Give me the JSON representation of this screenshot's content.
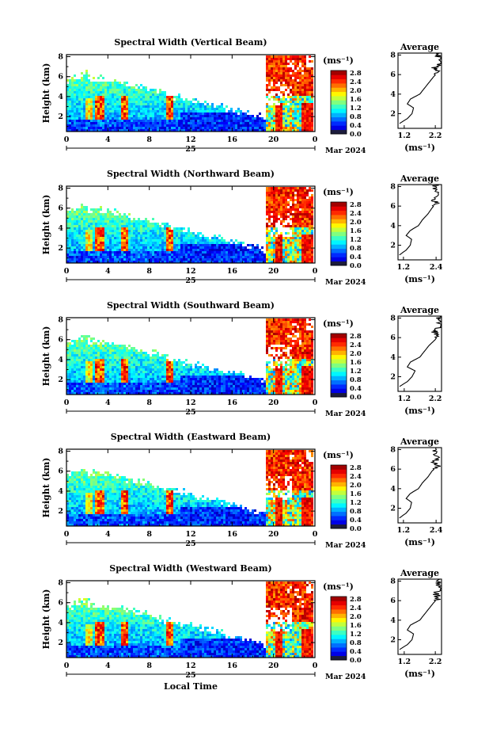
{
  "chart_data": [
    {
      "type": "heatmap",
      "title": "Spectral Width (Vertical Beam)",
      "ylabel": "Height (km)",
      "xticks": [
        "0",
        "4",
        "8",
        "12",
        "16",
        "20",
        "0"
      ],
      "yticks": [
        "2",
        "4",
        "6",
        "8"
      ],
      "xlim": [
        0,
        24
      ],
      "ylim": [
        0.5,
        8.2
      ],
      "day_label": "25",
      "month_label": "Mar 2024",
      "colorbar": {
        "unit": "(ms⁻¹)",
        "ticks": [
          "0.0",
          "0.4",
          "0.8",
          "1.2",
          "1.6",
          "2.0",
          "2.4",
          "2.8"
        ],
        "range": [
          0,
          2.9
        ]
      },
      "average": {
        "title": "Average",
        "xlabel": "(ms⁻¹)",
        "xticks": [
          "1.2",
          "2.2"
        ],
        "xlim": [
          1.0,
          2.4
        ],
        "yticks": [
          "2",
          "4",
          "6",
          "8"
        ],
        "profile": [
          [
            1.05,
            1.0
          ],
          [
            1.3,
            1.5
          ],
          [
            1.45,
            2.0
          ],
          [
            1.5,
            2.6
          ],
          [
            1.3,
            3.0
          ],
          [
            1.4,
            3.5
          ],
          [
            1.7,
            4.0
          ],
          [
            1.85,
            4.6
          ],
          [
            2.0,
            5.2
          ],
          [
            2.15,
            5.8
          ],
          [
            2.3,
            6.3
          ],
          [
            2.2,
            6.7
          ],
          [
            2.4,
            7.2
          ],
          [
            2.3,
            7.8
          ],
          [
            2.35,
            8.2
          ]
        ]
      }
    },
    {
      "type": "heatmap",
      "title": "Spectral Width (Northward Beam)",
      "ylabel": "Height (km)",
      "xticks": [
        "0",
        "4",
        "8",
        "12",
        "16",
        "20",
        "0"
      ],
      "yticks": [
        "2",
        "4",
        "6",
        "8"
      ],
      "xlim": [
        0,
        24
      ],
      "ylim": [
        0.5,
        8.2
      ],
      "day_label": "25",
      "month_label": "Mar 2024",
      "colorbar": {
        "unit": "(ms⁻¹)",
        "ticks": [
          "0.0",
          "0.4",
          "0.8",
          "1.2",
          "1.6",
          "2.0",
          "2.4",
          "2.8"
        ],
        "range": [
          0,
          2.9
        ]
      },
      "average": {
        "title": "Average",
        "xlabel": "(ms⁻¹)",
        "xticks": [
          "1.2",
          "2.4"
        ],
        "xlim": [
          1.0,
          2.6
        ],
        "yticks": [
          "2",
          "4",
          "6",
          "8"
        ],
        "profile": [
          [
            1.05,
            1.0
          ],
          [
            1.3,
            1.5
          ],
          [
            1.45,
            2.0
          ],
          [
            1.5,
            2.6
          ],
          [
            1.3,
            3.0
          ],
          [
            1.45,
            3.5
          ],
          [
            1.75,
            4.0
          ],
          [
            1.9,
            4.6
          ],
          [
            2.1,
            5.2
          ],
          [
            2.25,
            5.8
          ],
          [
            2.4,
            6.3
          ],
          [
            2.3,
            6.7
          ],
          [
            2.5,
            7.2
          ],
          [
            2.35,
            7.8
          ],
          [
            2.4,
            8.2
          ]
        ]
      }
    },
    {
      "type": "heatmap",
      "title": "Spectral Width (Southward Beam)",
      "ylabel": "Height (km)",
      "xticks": [
        "0",
        "4",
        "8",
        "12",
        "16",
        "20",
        "0"
      ],
      "yticks": [
        "2",
        "4",
        "6",
        "8"
      ],
      "xlim": [
        0,
        24
      ],
      "ylim": [
        0.5,
        8.2
      ],
      "day_label": "25",
      "month_label": "Mar 2024",
      "colorbar": {
        "unit": "(ms⁻¹)",
        "ticks": [
          "0.0",
          "0.4",
          "0.8",
          "1.2",
          "1.6",
          "2.0",
          "2.4",
          "2.8"
        ],
        "range": [
          0,
          2.9
        ]
      },
      "average": {
        "title": "Average",
        "xlabel": "(ms⁻¹)",
        "xticks": [
          "1.2",
          "2.2"
        ],
        "xlim": [
          1.0,
          2.4
        ],
        "yticks": [
          "2",
          "4",
          "6",
          "8"
        ],
        "profile": [
          [
            1.05,
            1.0
          ],
          [
            1.3,
            1.5
          ],
          [
            1.45,
            2.0
          ],
          [
            1.55,
            2.6
          ],
          [
            1.3,
            3.0
          ],
          [
            1.4,
            3.5
          ],
          [
            1.7,
            4.0
          ],
          [
            1.85,
            4.6
          ],
          [
            2.0,
            5.2
          ],
          [
            2.2,
            5.8
          ],
          [
            2.3,
            6.3
          ],
          [
            2.15,
            6.7
          ],
          [
            2.4,
            7.2
          ],
          [
            2.3,
            7.8
          ],
          [
            2.35,
            8.2
          ]
        ]
      }
    },
    {
      "type": "heatmap",
      "title": "Spectral Width (Eastward Beam)",
      "ylabel": "Height (km)",
      "xticks": [
        "0",
        "4",
        "8",
        "12",
        "16",
        "20",
        "0"
      ],
      "yticks": [
        "2",
        "4",
        "6",
        "8"
      ],
      "xlim": [
        0,
        24
      ],
      "ylim": [
        0.5,
        8.2
      ],
      "day_label": "25",
      "month_label": "Mar 2024",
      "colorbar": {
        "unit": "(ms⁻¹)",
        "ticks": [
          "0.0",
          "0.4",
          "0.8",
          "1.2",
          "1.6",
          "2.0",
          "2.4",
          "2.8"
        ],
        "range": [
          0,
          2.9
        ]
      },
      "average": {
        "title": "Average",
        "xlabel": "(ms⁻¹)",
        "xticks": [
          "1.2",
          "2.4"
        ],
        "xlim": [
          1.0,
          2.6
        ],
        "yticks": [
          "2",
          "4",
          "6",
          "8"
        ],
        "profile": [
          [
            1.05,
            1.0
          ],
          [
            1.3,
            1.5
          ],
          [
            1.45,
            2.0
          ],
          [
            1.5,
            2.6
          ],
          [
            1.3,
            3.0
          ],
          [
            1.45,
            3.5
          ],
          [
            1.75,
            4.0
          ],
          [
            1.9,
            4.6
          ],
          [
            2.1,
            5.2
          ],
          [
            2.25,
            5.8
          ],
          [
            2.45,
            6.3
          ],
          [
            2.3,
            6.7
          ],
          [
            2.5,
            7.2
          ],
          [
            2.35,
            7.8
          ],
          [
            2.4,
            8.2
          ]
        ]
      }
    },
    {
      "type": "heatmap",
      "title": "Spectral Width (Westward Beam)",
      "ylabel": "Height (km)",
      "xlabel": "Local Time",
      "xticks": [
        "0",
        "4",
        "8",
        "12",
        "16",
        "20",
        "0"
      ],
      "yticks": [
        "2",
        "4",
        "6",
        "8"
      ],
      "xlim": [
        0,
        24
      ],
      "ylim": [
        0.5,
        8.2
      ],
      "day_label": "25",
      "month_label": "Mar 2024",
      "colorbar": {
        "unit": "(ms⁻¹)",
        "ticks": [
          "0.0",
          "0.4",
          "0.8",
          "1.2",
          "1.6",
          "2.0",
          "2.4",
          "2.8"
        ],
        "range": [
          0,
          2.9
        ]
      },
      "average": {
        "title": "Average",
        "xlabel": "(ms⁻¹)",
        "xticks": [
          "1.2",
          "2.2"
        ],
        "xlim": [
          1.0,
          2.4
        ],
        "yticks": [
          "2",
          "4",
          "6",
          "8"
        ],
        "profile": [
          [
            1.05,
            1.0
          ],
          [
            1.3,
            1.5
          ],
          [
            1.45,
            2.0
          ],
          [
            1.5,
            2.6
          ],
          [
            1.3,
            3.0
          ],
          [
            1.4,
            3.5
          ],
          [
            1.7,
            4.0
          ],
          [
            1.85,
            4.6
          ],
          [
            2.0,
            5.2
          ],
          [
            2.15,
            5.8
          ],
          [
            2.3,
            6.3
          ],
          [
            2.2,
            6.7
          ],
          [
            2.4,
            7.2
          ],
          [
            2.3,
            7.8
          ],
          [
            2.35,
            8.2
          ]
        ]
      }
    }
  ]
}
